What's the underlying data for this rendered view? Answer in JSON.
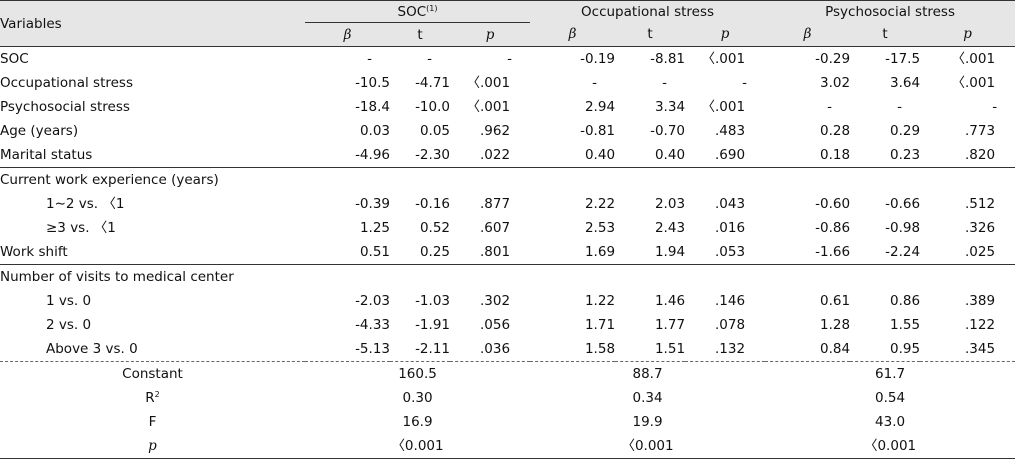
{
  "header": {
    "variables": "Variables",
    "groups": [
      {
        "label": "SOC",
        "sup": "(1)"
      },
      {
        "label": "Occupational stress",
        "sup": ""
      },
      {
        "label": "Psychosocial stress",
        "sup": ""
      }
    ],
    "sub": [
      "β",
      "t",
      "p"
    ]
  },
  "rows": {
    "soc": {
      "label": "SOC",
      "v": [
        "-",
        "-",
        "-",
        "-0.19",
        "-8.81",
        "〈.001",
        "-0.29",
        "-17.5",
        "〈.001"
      ]
    },
    "occ": {
      "label": "Occupational stress",
      "v": [
        "-10.5",
        "-4.71",
        "〈.001",
        "-",
        "-",
        "-",
        "3.02",
        "3.64",
        "〈.001"
      ]
    },
    "psy": {
      "label": "Psychosocial stress",
      "v": [
        "-18.4",
        "-10.0",
        "〈.001",
        "2.94",
        "3.34",
        "〈.001",
        "-",
        "-",
        "-"
      ]
    },
    "age": {
      "label": "Age (years)",
      "v": [
        "0.03",
        "0.05",
        ".962",
        "-0.81",
        "-0.70",
        ".483",
        "0.28",
        "0.29",
        ".773"
      ]
    },
    "marital": {
      "label": "Marital status",
      "v": [
        "-4.96",
        "-2.30",
        ".022",
        "0.40",
        "0.40",
        ".690",
        "0.18",
        "0.23",
        ".820"
      ]
    },
    "work_exp": {
      "label": "Current work experience (years)"
    },
    "exp1": {
      "label": "1∼2 vs. 〈1",
      "v": [
        "-0.39",
        "-0.16",
        ".877",
        "2.22",
        "2.03",
        ".043",
        "-0.60",
        "-0.66",
        ".512"
      ]
    },
    "exp2": {
      "label": "≥3 vs. 〈1",
      "v": [
        "1.25",
        "0.52",
        ".607",
        "2.53",
        "2.43",
        ".016",
        "-0.86",
        "-0.98",
        ".326"
      ]
    },
    "shift": {
      "label": "Work shift",
      "v": [
        "0.51",
        "0.25",
        ".801",
        "1.69",
        "1.94",
        ".053",
        "-1.66",
        "-2.24",
        ".025"
      ]
    },
    "visits": {
      "label": "Number of visits to medical center"
    },
    "v1": {
      "label": "1 vs. 0",
      "v": [
        "-2.03",
        "-1.03",
        ".302",
        "1.22",
        "1.46",
        ".146",
        "0.61",
        "0.86",
        ".389"
      ]
    },
    "v2": {
      "label": "2 vs. 0",
      "v": [
        "-4.33",
        "-1.91",
        ".056",
        "1.71",
        "1.77",
        ".078",
        "1.28",
        "1.55",
        ".122"
      ]
    },
    "v3": {
      "label": "Above 3 vs. 0",
      "v": [
        "-5.13",
        "-2.11",
        ".036",
        "1.58",
        "1.51",
        ".132",
        "0.84",
        "0.95",
        ".345"
      ]
    }
  },
  "footer": {
    "constant": {
      "label": "Constant",
      "v": [
        "160.5",
        "88.7",
        "61.7"
      ]
    },
    "r2": {
      "label": "R",
      "sup": "2",
      "v": [
        "0.30",
        "0.34",
        "0.54"
      ]
    },
    "f": {
      "label": "F",
      "v": [
        "16.9",
        "19.9",
        "43.0"
      ]
    },
    "p": {
      "label": "p",
      "v": [
        "〈0.001",
        "〈0.001",
        "〈0.001"
      ]
    }
  }
}
